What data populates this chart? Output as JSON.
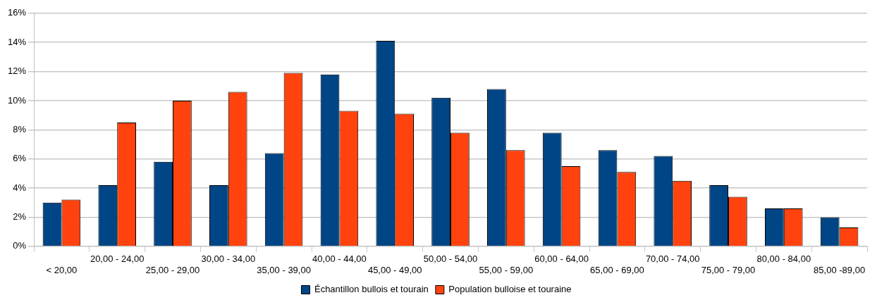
{
  "chart_data": {
    "type": "bar",
    "categories": [
      "< 20,00",
      "20,00 - 24,00",
      "25,00 - 29,00",
      "30,00 - 34,00",
      "35,00 - 39,00",
      "40,00 - 44,00",
      "45,00 - 49,00",
      "50,00 - 54,00",
      "55,00 - 59,00",
      "60,00 - 64,00",
      "65,00 - 69,00",
      "70,00 - 74,00",
      "75,00 - 79,00",
      "80,00 - 84,00",
      "85,00 -89,00"
    ],
    "series": [
      {
        "name": "Échantillon bullois et tourain",
        "color": "#004586",
        "values": [
          3.0,
          4.2,
          5.8,
          4.2,
          6.4,
          11.8,
          14.1,
          10.2,
          10.8,
          7.8,
          6.6,
          6.2,
          4.2,
          2.6,
          2.0
        ]
      },
      {
        "name": "Population bulloise et touraine",
        "color": "#ff420e",
        "values": [
          3.2,
          8.5,
          10.0,
          10.6,
          11.9,
          9.3,
          9.1,
          7.8,
          6.6,
          5.5,
          5.1,
          4.5,
          3.4,
          2.6,
          1.3
        ]
      }
    ],
    "ylim": [
      0,
      16
    ],
    "yticks": [
      {
        "value": 0,
        "label": "0%"
      },
      {
        "value": 2,
        "label": "2%"
      },
      {
        "value": 4,
        "label": "4%"
      },
      {
        "value": 6,
        "label": "6%"
      },
      {
        "value": 8,
        "label": "8%"
      },
      {
        "value": 10,
        "label": "10%"
      },
      {
        "value": 12,
        "label": "12%"
      },
      {
        "value": 14,
        "label": "14%"
      },
      {
        "value": 16,
        "label": "16%"
      }
    ],
    "grid": "y",
    "legend": "bottom"
  }
}
